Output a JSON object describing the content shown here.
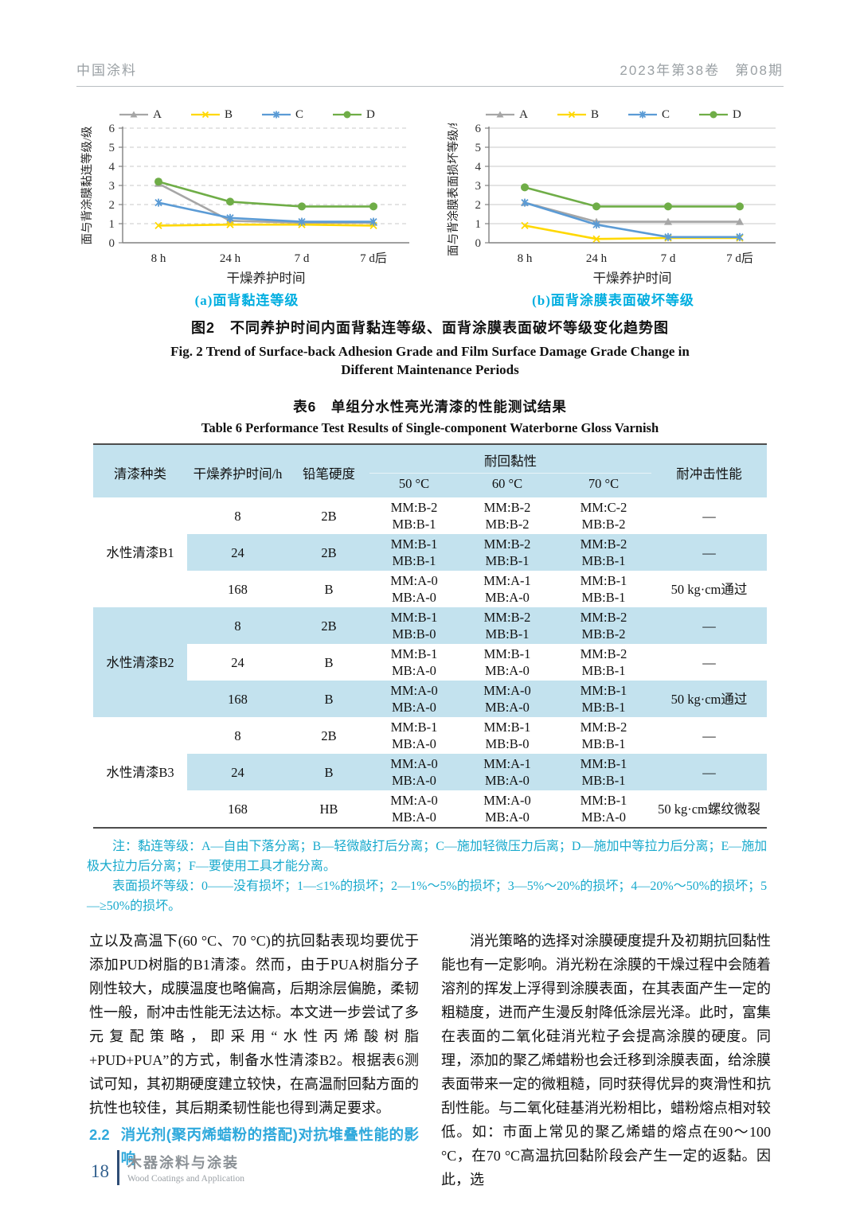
{
  "header": {
    "journal": "中国涂料",
    "issue": "2023年第38卷　第08期"
  },
  "figure": {
    "caption_zh": "图2　不同养护时间内面背黏连等级、面背涂膜表面破坏等级变化趋势图",
    "caption_en": "Fig. 2  Trend of Surface-back Adhesion Grade and Film Surface Damage Grade Change in Different Maintenance Periods"
  },
  "chart_data": [
    {
      "type": "line",
      "caption": "(a)面背黏连等级",
      "ylabel": "面与背涂膜黏连等级/级",
      "xlabel": "干燥养护时间",
      "categories": [
        "8 h",
        "24 h",
        "7 d",
        "7 d后"
      ],
      "ylim": [
        0,
        6
      ],
      "yticks": [
        0,
        1,
        2,
        3,
        4,
        5,
        6
      ],
      "grid": "dashed",
      "legend_position": "top",
      "series": [
        {
          "name": "A",
          "color": "#a6a6a6",
          "marker": "triangle",
          "values": [
            3.1,
            1.15,
            1.05,
            1.05
          ]
        },
        {
          "name": "B",
          "color": "#ffd800",
          "marker": "x",
          "values": [
            0.9,
            0.95,
            0.95,
            0.9
          ]
        },
        {
          "name": "C",
          "color": "#5b9bd5",
          "marker": "asterisk",
          "values": [
            2.1,
            1.3,
            1.1,
            1.1
          ]
        },
        {
          "name": "D",
          "color": "#6fad47",
          "marker": "circle",
          "values": [
            3.2,
            2.15,
            1.9,
            1.9
          ]
        }
      ]
    },
    {
      "type": "line",
      "caption": "(b)面背涂膜表面破坏等级",
      "ylabel": "面与背涂膜表面损坏等级/级",
      "xlabel": "干燥养护时间",
      "categories": [
        "8 h",
        "24 h",
        "7 d",
        "7 d后"
      ],
      "ylim": [
        0,
        6
      ],
      "yticks": [
        0,
        1,
        2,
        3,
        4,
        5,
        6
      ],
      "grid": "solid",
      "legend_position": "top",
      "series": [
        {
          "name": "A",
          "color": "#a6a6a6",
          "marker": "triangle",
          "values": [
            2.1,
            1.1,
            1.1,
            1.1
          ]
        },
        {
          "name": "B",
          "color": "#ffd800",
          "marker": "x",
          "values": [
            0.9,
            0.2,
            0.25,
            0.25
          ]
        },
        {
          "name": "C",
          "color": "#5b9bd5",
          "marker": "asterisk",
          "values": [
            2.1,
            0.95,
            0.3,
            0.3
          ]
        },
        {
          "name": "D",
          "color": "#6fad47",
          "marker": "circle",
          "values": [
            2.9,
            1.9,
            1.9,
            1.9
          ]
        }
      ]
    }
  ],
  "table": {
    "caption_zh": "表6　单组分水性亮光清漆的性能测试结果",
    "caption_en": "Table 6  Performance Test Results of Single-component Waterborne Gloss Varnish",
    "headers": {
      "type": "清漆种类",
      "time": "干燥养护时间/h",
      "hardness": "铅笔硬度",
      "tack": "耐回黏性",
      "impact": "耐冲击性能"
    },
    "temps": [
      "50 °C",
      "60 °C",
      "70 °C"
    ],
    "groups": [
      {
        "name": "水性清漆B1",
        "rows": [
          {
            "time": "8",
            "hardness": "2B",
            "t50": [
              "MM:B-2",
              "MB:B-1"
            ],
            "t60": [
              "MM:B-2",
              "MB:B-2"
            ],
            "t70": [
              "MM:C-2",
              "MB:B-2"
            ],
            "impact": "—"
          },
          {
            "time": "24",
            "hardness": "2B",
            "t50": [
              "MM:B-1",
              "MB:B-1"
            ],
            "t60": [
              "MM:B-2",
              "MB:B-1"
            ],
            "t70": [
              "MM:B-2",
              "MB:B-1"
            ],
            "impact": "—"
          },
          {
            "time": "168",
            "hardness": "B",
            "t50": [
              "MM:A-0",
              "MB:A-0"
            ],
            "t60": [
              "MM:A-1",
              "MB:A-0"
            ],
            "t70": [
              "MM:B-1",
              "MB:B-1"
            ],
            "impact": "50 kg·cm通过"
          }
        ]
      },
      {
        "name": "水性清漆B2",
        "rows": [
          {
            "time": "8",
            "hardness": "2B",
            "t50": [
              "MM:B-1",
              "MB:B-0"
            ],
            "t60": [
              "MM:B-2",
              "MB:B-1"
            ],
            "t70": [
              "MM:B-2",
              "MB:B-2"
            ],
            "impact": "—"
          },
          {
            "time": "24",
            "hardness": "B",
            "t50": [
              "MM:B-1",
              "MB:A-0"
            ],
            "t60": [
              "MM:B-1",
              "MB:A-0"
            ],
            "t70": [
              "MM:B-2",
              "MB:B-1"
            ],
            "impact": "—"
          },
          {
            "time": "168",
            "hardness": "B",
            "t50": [
              "MM:A-0",
              "MB:A-0"
            ],
            "t60": [
              "MM:A-0",
              "MB:A-0"
            ],
            "t70": [
              "MM:B-1",
              "MB:B-1"
            ],
            "impact": "50 kg·cm通过"
          }
        ]
      },
      {
        "name": "水性清漆B3",
        "rows": [
          {
            "time": "8",
            "hardness": "2B",
            "t50": [
              "MM:B-1",
              "MB:A-0"
            ],
            "t60": [
              "MM:B-1",
              "MB:B-0"
            ],
            "t70": [
              "MM:B-2",
              "MB:B-1"
            ],
            "impact": "—"
          },
          {
            "time": "24",
            "hardness": "B",
            "t50": [
              "MM:A-0",
              "MB:A-0"
            ],
            "t60": [
              "MM:A-1",
              "MB:A-0"
            ],
            "t70": [
              "MM:B-1",
              "MB:B-1"
            ],
            "impact": "—"
          },
          {
            "time": "168",
            "hardness": "HB",
            "t50": [
              "MM:A-0",
              "MB:A-0"
            ],
            "t60": [
              "MM:A-0",
              "MB:A-0"
            ],
            "t70": [
              "MM:B-1",
              "MB:A-0"
            ],
            "impact": "50 kg·cm螺纹微裂"
          }
        ]
      }
    ]
  },
  "notes": {
    "note1": "注：黏连等级：A—自由下落分离；B—轻微敲打后分离；C—施加轻微压力后离；D—施加中等拉力后分离；E—施加极大拉力后分离；F—要使用工具才能分离。",
    "note2": "表面损坏等级：0——没有损坏；1—≤1%的损坏；2—1%～5%的损坏；3—5%～20%的损坏；4—20%～50%的损坏；5—≥50%的损坏。"
  },
  "body": {
    "left_paragraph": "立以及高温下(60 °C、70 °C)的抗回黏表现均要优于添加PUD树脂的B1清漆。然而，由于PUA树脂分子刚性较大，成膜温度也略偏高，后期涂层偏脆，柔韧性一般，耐冲击性能无法达标。本文进一步尝试了多元复配策略，即采用“水性丙烯酸树脂+PUD+PUA”的方式，制备水性清漆B2。根据表6测试可知，其初期硬度建立较快，在高温耐回黏方面的抗性也较佳，其后期柔韧性能也得到满足要求。",
    "heading_num": "2.2",
    "heading_text": "消光剂(聚丙烯蜡粉的搭配)对抗堆叠性能的影响",
    "right_paragraph": "消光策略的选择对涂膜硬度提升及初期抗回黏性能也有一定影响。消光粉在涂膜的干燥过程中会随着溶剂的挥发上浮得到涂膜表面，在其表面产生一定的粗糙度，进而产生漫反射降低涂层光泽。此时，富集在表面的二氧化硅消光粒子会提高涂膜的硬度。同理，添加的聚乙烯蜡粉也会迁移到涂膜表面，给涂膜表面带来一定的微粗糙，同时获得优异的爽滑性和抗刮性能。与二氧化硅基消光粉相比，蜡粉熔点相对较低。如：市面上常见的聚乙烯蜡的熔点在90～100 °C，在70 °C高温抗回黏阶段会产生一定的返黏。因此，选"
  },
  "footer": {
    "page": "18",
    "title_zh": "木器涂料与涂装",
    "title_en": "Wood Coatings and Application"
  },
  "colors": {
    "accent_cyan": "#00aee0",
    "note_color": "#18a9cc",
    "heading_color": "#2fa9dc",
    "table_blue": "#c3e2ee",
    "footer_page_color": "#33618f",
    "footer_bar_color": "#2e4d75",
    "header_gray": "#9aa0a4"
  }
}
